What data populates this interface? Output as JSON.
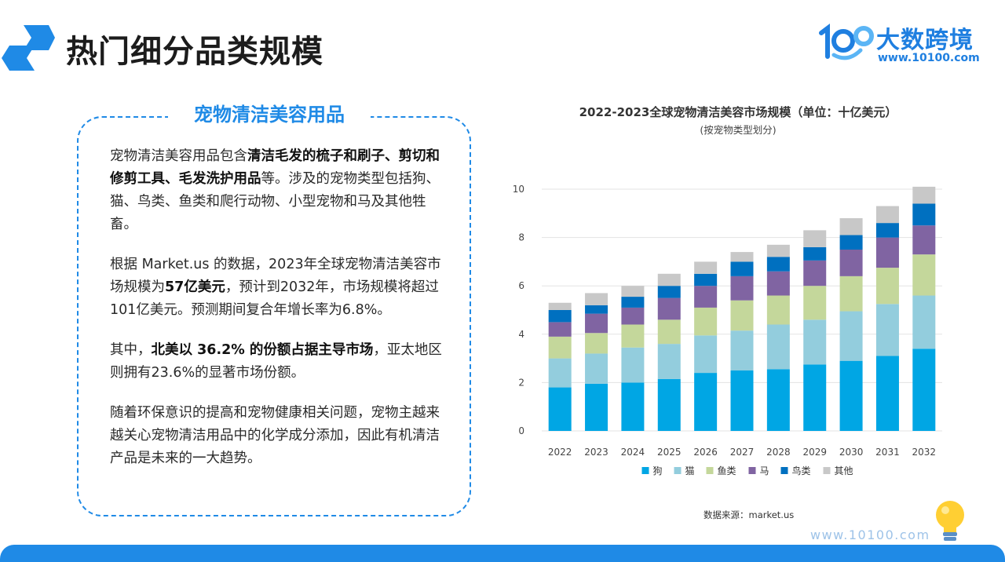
{
  "header": {
    "title": "热门细分品类规模"
  },
  "brand": {
    "name": "大数跨境",
    "url": "www.10100.com",
    "accent_color": "#1f8ae6"
  },
  "info_box": {
    "title": "宠物清洁美容用品",
    "paragraphs": [
      [
        {
          "t": "宠物清洁美容用品包含"
        },
        {
          "t": "清洁毛发的梳子和刷子、剪切和修剪工具、毛发洗护用品",
          "b": true
        },
        {
          "t": "等。涉及的宠物类型包括狗、猫、鸟类、鱼类和爬行动物、小型宠物和马及其他牲畜。"
        }
      ],
      [
        {
          "t": "根据 Market.us 的数据，2023年全球宠物清洁美容市场规模为"
        },
        {
          "t": "57亿美元",
          "b": true
        },
        {
          "t": "，预计到2032年，市场规模将超过101亿美元。预测期间复合年增长率为6.8%。"
        }
      ],
      [
        {
          "t": "其中，"
        },
        {
          "t": "北美以 36.2% 的份额占据主导市场",
          "b": true
        },
        {
          "t": "，亚太地区则拥有23.6%的显著市场份额。"
        }
      ],
      [
        {
          "t": "随着环保意识的提高和宠物健康相关问题，宠物主越来越关心宠物清洁用品中的化学成分添加，因此有机清洁产品是未来的一大趋势。"
        }
      ]
    ]
  },
  "chart_data": {
    "type": "bar",
    "stacked": true,
    "title": "2022-2023全球宠物清洁美容市场规模（单位：十亿美元）",
    "subtitle": "(按宠物类型划分)",
    "categories": [
      "2022",
      "2023",
      "2024",
      "2025",
      "2026",
      "2027",
      "2028",
      "2029",
      "2030",
      "2031",
      "2032"
    ],
    "ylim": [
      0,
      10
    ],
    "yticks": [
      0,
      2,
      4,
      6,
      8,
      10
    ],
    "grid": true,
    "legend_position": "bottom",
    "series": [
      {
        "name": "狗",
        "color": "#00a6e4",
        "values": [
          1.8,
          1.95,
          2.0,
          2.15,
          2.4,
          2.5,
          2.55,
          2.75,
          2.9,
          3.1,
          3.4
        ]
      },
      {
        "name": "猫",
        "color": "#93cddd",
        "values": [
          1.2,
          1.25,
          1.45,
          1.45,
          1.55,
          1.65,
          1.85,
          1.85,
          2.05,
          2.15,
          2.2
        ]
      },
      {
        "name": "鱼类",
        "color": "#c4d79b",
        "values": [
          0.9,
          0.85,
          0.95,
          1.0,
          1.15,
          1.25,
          1.2,
          1.4,
          1.45,
          1.5,
          1.7
        ]
      },
      {
        "name": "马",
        "color": "#8064a2",
        "values": [
          0.6,
          0.8,
          0.7,
          0.9,
          0.9,
          1.0,
          1.0,
          1.05,
          1.1,
          1.25,
          1.2
        ]
      },
      {
        "name": "鸟类",
        "color": "#0070c0",
        "values": [
          0.5,
          0.35,
          0.45,
          0.5,
          0.5,
          0.6,
          0.6,
          0.55,
          0.6,
          0.6,
          0.9
        ]
      },
      {
        "name": "其他",
        "color": "#c8c8c8",
        "values": [
          0.3,
          0.5,
          0.45,
          0.5,
          0.5,
          0.4,
          0.5,
          0.7,
          0.7,
          0.7,
          0.7
        ]
      }
    ],
    "source": "数据来源：market.us"
  },
  "footer": {
    "url": "www.10100.com"
  }
}
